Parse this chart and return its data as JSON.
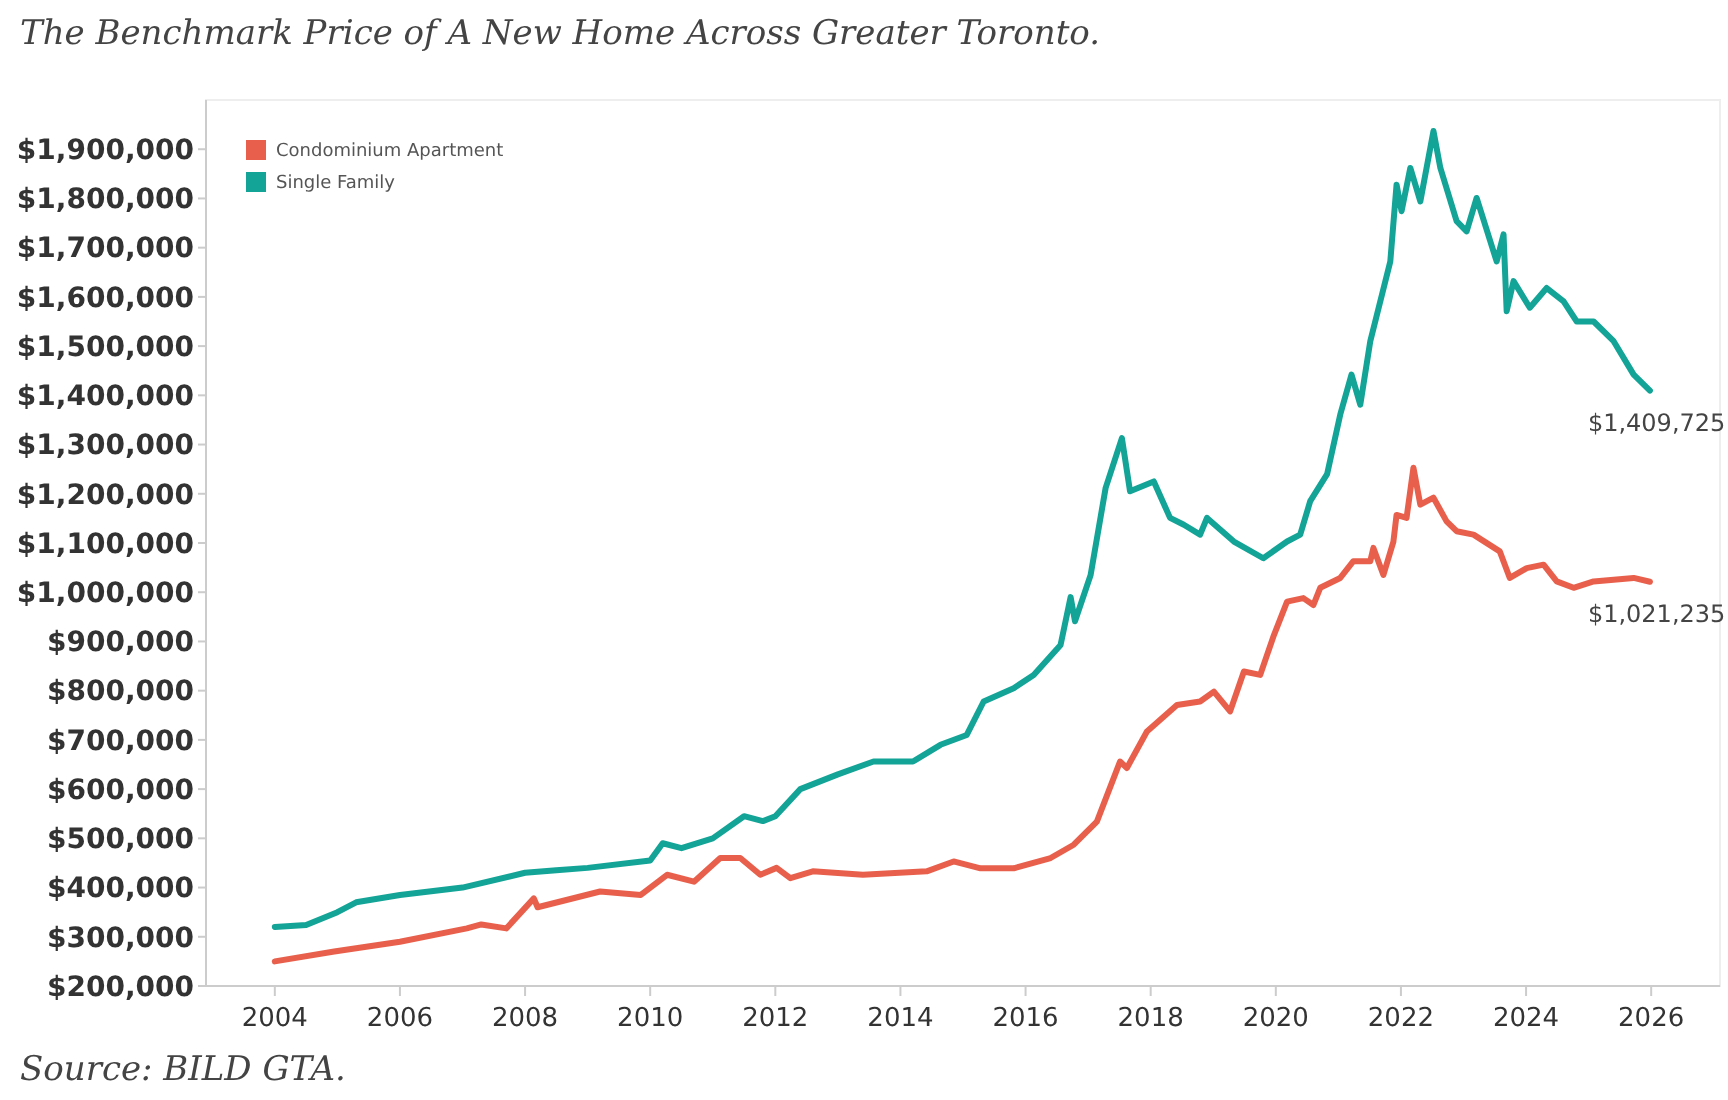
{
  "chart_data": {
    "type": "line",
    "title": "The Benchmark Price of A New Home Across Greater Toronto.",
    "annotations": [
      "Source: BILD GTA.",
      {
        "text": "$1,409,725",
        "x": 2025.98,
        "y": 1409725
      },
      {
        "text": "$1,021,235",
        "x": 2025.98,
        "y": 1021235
      }
    ],
    "xlim": [
      2002.9,
      2027.1
    ],
    "xticks": [
      2004,
      2006,
      2008,
      2010,
      2012,
      2014,
      2016,
      2018,
      2020,
      2022,
      2024,
      2026
    ],
    "ylim": [
      200000,
      2000000
    ],
    "yticks": [
      {
        "value": 200000,
        "label": "$200,000"
      },
      {
        "value": 300000,
        "label": "$300,000"
      },
      {
        "value": 400000,
        "label": "$400,000"
      },
      {
        "value": 500000,
        "label": "$500,000"
      },
      {
        "value": 600000,
        "label": "$600,000"
      },
      {
        "value": 700000,
        "label": "$700,000"
      },
      {
        "value": 800000,
        "label": "$800,000"
      },
      {
        "value": 900000,
        "label": "$900,000"
      },
      {
        "value": 1000000,
        "label": "$1,000,000"
      },
      {
        "value": 1100000,
        "label": "$1,100,000"
      },
      {
        "value": 1200000,
        "label": "$1,200,000"
      },
      {
        "value": 1300000,
        "label": "$1,300,000"
      },
      {
        "value": 1400000,
        "label": "$1,400,000"
      },
      {
        "value": 1500000,
        "label": "$1,500,000"
      },
      {
        "value": 1600000,
        "label": "$1,600,000"
      },
      {
        "value": 1700000,
        "label": "$1,700,000"
      },
      {
        "value": 1800000,
        "label": "$1,800,000"
      },
      {
        "value": 1900000,
        "label": "$1,900,000"
      }
    ],
    "grid": false,
    "legend": "top left",
    "marker": "none",
    "line_style": "solid",
    "series": [
      {
        "name": "Condominium Apartment",
        "color": "#e8604c",
        "x": [
          2004.0,
          2004.95,
          2006.0,
          2007.07,
          2007.3,
          2007.7,
          2008.14,
          2008.2,
          2009.2,
          2009.85,
          2010.27,
          2010.7,
          2011.12,
          2011.44,
          2011.76,
          2012.02,
          2012.24,
          2012.6,
          2013.4,
          2014.42,
          2014.85,
          2015.28,
          2015.81,
          2016.4,
          2016.77,
          2017.14,
          2017.51,
          2017.62,
          2017.94,
          2018.42,
          2018.79,
          2019.01,
          2019.27,
          2019.49,
          2019.75,
          2019.97,
          2020.18,
          2020.44,
          2020.6,
          2020.71,
          2021.03,
          2021.24,
          2021.51,
          2021.56,
          2021.72,
          2021.88,
          2021.93,
          2022.09,
          2022.2,
          2022.31,
          2022.52,
          2022.73,
          2022.89,
          2023.16,
          2023.58,
          2023.74,
          2024.01,
          2024.28,
          2024.49,
          2024.76,
          2025.08,
          2025.72,
          2025.98
        ],
        "values": [
          250000,
          270000,
          290000,
          317000,
          325000,
          317000,
          378000,
          360000,
          392000,
          385000,
          426000,
          412000,
          460000,
          460000,
          426000,
          440000,
          419000,
          433000,
          426000,
          433000,
          453000,
          439000,
          439000,
          460000,
          487000,
          534000,
          656000,
          643000,
          717000,
          771000,
          778000,
          798000,
          758000,
          839000,
          832000,
          913000,
          981000,
          988000,
          974000,
          1009000,
          1029000,
          1063000,
          1063000,
          1090000,
          1035000,
          1103000,
          1157000,
          1151000,
          1253000,
          1178000,
          1192000,
          1144000,
          1124000,
          1117000,
          1083000,
          1029000,
          1049000,
          1056000,
          1022000,
          1009000,
          1022000,
          1029000,
          1021235
        ]
      },
      {
        "name": "Single Family",
        "color": "#13a497",
        "x": [
          2004.0,
          2004.5,
          2005.0,
          2005.3,
          2006.0,
          2007.0,
          2008.0,
          2008.5,
          2009.0,
          2010.0,
          2010.2,
          2010.5,
          2011.0,
          2011.5,
          2011.8,
          2012.0,
          2012.4,
          2013.0,
          2013.57,
          2014.2,
          2014.64,
          2015.06,
          2015.33,
          2015.81,
          2016.13,
          2016.56,
          2016.72,
          2016.79,
          2017.04,
          2017.28,
          2017.54,
          2017.67,
          2018.05,
          2018.31,
          2018.53,
          2018.79,
          2018.9,
          2019.33,
          2019.8,
          2020.18,
          2020.39,
          2020.55,
          2020.82,
          2021.03,
          2021.21,
          2021.35,
          2021.51,
          2021.83,
          2021.93,
          2022.01,
          2022.15,
          2022.31,
          2022.52,
          2022.63,
          2022.89,
          2023.05,
          2023.21,
          2023.53,
          2023.64,
          2023.69,
          2023.8,
          2024.06,
          2024.33,
          2024.6,
          2024.81,
          2025.08,
          2025.4,
          2025.72,
          2025.98
        ],
        "values": [
          320000,
          324000,
          350000,
          370000,
          385000,
          400000,
          430000,
          435000,
          440000,
          455000,
          490000,
          480000,
          500000,
          545000,
          535000,
          545000,
          600000,
          630000,
          656000,
          656000,
          690000,
          710000,
          778000,
          805000,
          832000,
          893000,
          990000,
          941000,
          1035000,
          1212000,
          1313000,
          1205000,
          1225000,
          1151000,
          1137000,
          1117000,
          1151000,
          1103000,
          1069000,
          1103000,
          1117000,
          1185000,
          1240000,
          1361000,
          1442000,
          1381000,
          1510000,
          1672000,
          1828000,
          1774000,
          1862000,
          1794000,
          1937000,
          1862000,
          1754000,
          1733000,
          1801000,
          1672000,
          1727000,
          1571000,
          1632000,
          1578000,
          1618000,
          1591000,
          1550000,
          1550000,
          1510000,
          1442000,
          1409725
        ]
      }
    ]
  }
}
